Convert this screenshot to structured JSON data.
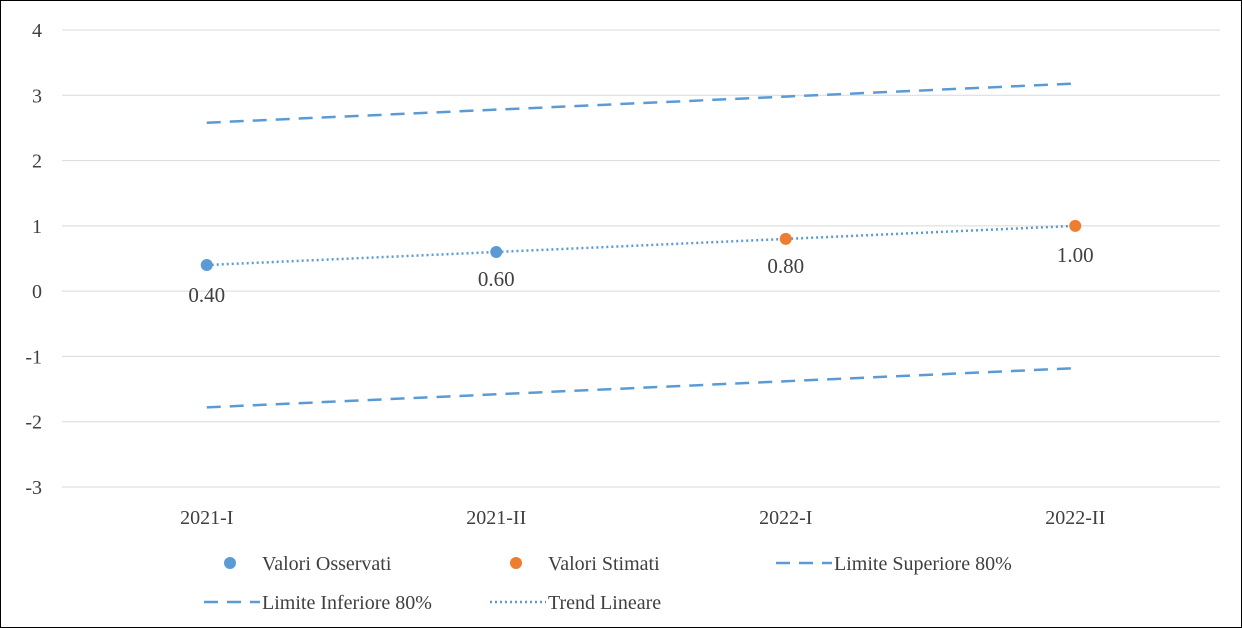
{
  "chart_data": {
    "type": "line",
    "categories": [
      "2021-I",
      "2021-II",
      "2022-I",
      "2022-II"
    ],
    "ylim": [
      -3,
      4
    ],
    "yticks": [
      4,
      3,
      2,
      1,
      0,
      -1,
      -2,
      -3
    ],
    "grid": true,
    "legend_position": "bottom",
    "series": [
      {
        "name": "Valori Osservati",
        "kind": "markers",
        "color": "#5B9BD5",
        "x": [
          "2021-I",
          "2021-II"
        ],
        "values": [
          0.4,
          0.6
        ]
      },
      {
        "name": "Valori Stimati",
        "kind": "markers",
        "color": "#ED7D31",
        "x": [
          "2022-I",
          "2022-II"
        ],
        "values": [
          0.8,
          1.0
        ]
      },
      {
        "name": "Limite Superiore 80%",
        "kind": "dashed",
        "color": "#5B9BD5",
        "x": [
          "2021-I",
          "2021-II",
          "2022-I",
          "2022-II"
        ],
        "values": [
          2.58,
          2.78,
          2.98,
          3.18
        ]
      },
      {
        "name": "Limite Inferiore 80%",
        "kind": "dashed",
        "color": "#5B9BD5",
        "x": [
          "2021-I",
          "2021-II",
          "2022-I",
          "2022-II"
        ],
        "values": [
          -1.78,
          -1.58,
          -1.38,
          -1.18
        ]
      },
      {
        "name": "Trend Lineare",
        "kind": "dotted",
        "color": "#5B9BD5",
        "x": [
          "2021-I",
          "2021-II",
          "2022-I",
          "2022-II"
        ],
        "values": [
          0.4,
          0.6,
          0.8,
          1.0
        ]
      }
    ],
    "data_labels": [
      "0.40",
      "0.60",
      "0.80",
      "1.00"
    ]
  }
}
